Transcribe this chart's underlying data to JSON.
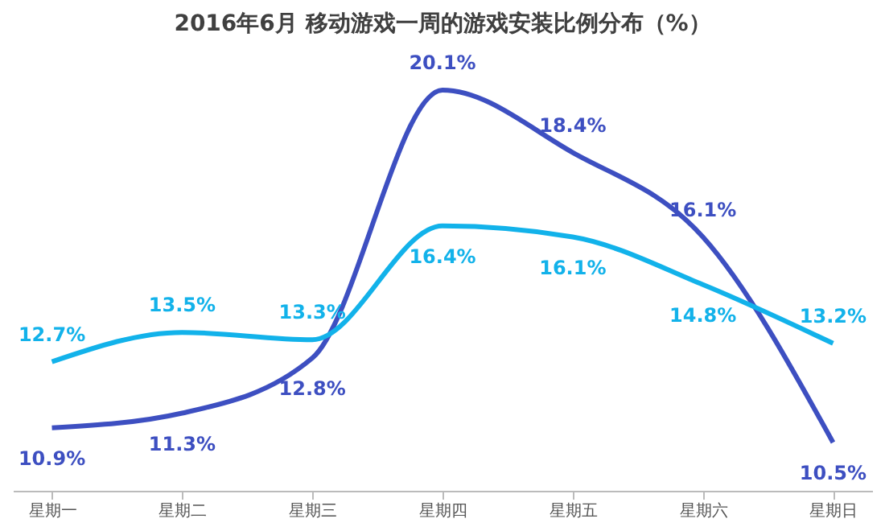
{
  "chart_data": {
    "type": "line",
    "title": "2016年6月 移动游戏一周的游戏安装比例分布（%）",
    "categories": [
      "星期一",
      "星期二",
      "星期三",
      "星期四",
      "星期五",
      "星期六",
      "星期日"
    ],
    "series": [
      {
        "color": "#3d4fc1",
        "values": [
          10.9,
          11.3,
          12.8,
          20.1,
          18.4,
          16.1,
          10.5
        ],
        "value_labels": [
          "10.9%",
          "11.3%",
          "12.8%",
          "20.1%",
          "18.4%",
          "16.1%",
          "10.5%"
        ]
      },
      {
        "color": "#12b2ea",
        "values": [
          12.7,
          13.5,
          13.3,
          16.4,
          16.1,
          14.8,
          13.2
        ],
        "value_labels": [
          "12.7%",
          "13.5%",
          "13.3%",
          "16.4%",
          "16.1%",
          "14.8%",
          "13.2%"
        ]
      }
    ],
    "grid": false,
    "legend": false,
    "marker": "none",
    "line_style": "solid",
    "tick_labels": "x"
  }
}
